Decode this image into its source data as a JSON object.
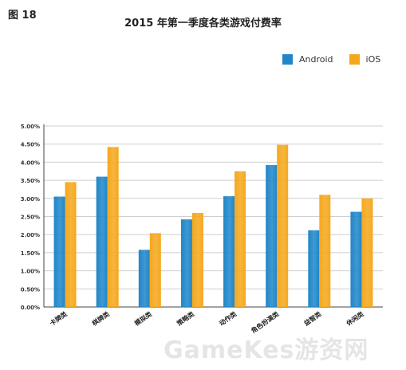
{
  "figure_label": "图 18",
  "watermark": "GameKes游资网",
  "colors": {
    "android": "#1f86c9",
    "ios": "#f5a81c",
    "grid": "#cfcfcf",
    "axis": "#444444"
  },
  "chart_data": {
    "type": "bar",
    "title": "2015 年第一季度各类游戏付费率",
    "xlabel": "",
    "ylabel": "",
    "ylim": [
      0,
      5
    ],
    "yticks": [
      "0.00%",
      "0.50%",
      "1.00%",
      "1.50%",
      "2.00%",
      "2.50%",
      "3.00%",
      "3.50%",
      "4.00%",
      "4.50%",
      "5.00%"
    ],
    "legend_position": "top-right",
    "grid": true,
    "categories": [
      "卡牌类",
      "棋牌类",
      "模拟类",
      "策略类",
      "动作类",
      "角色扮演类",
      "益智类",
      "休闲类"
    ],
    "series": [
      {
        "name": "Android",
        "values": [
          3.05,
          3.6,
          1.58,
          2.42,
          3.06,
          3.92,
          2.12,
          2.63
        ]
      },
      {
        "name": "iOS",
        "values": [
          3.45,
          4.42,
          2.04,
          2.6,
          3.75,
          4.48,
          3.1,
          3.0
        ]
      }
    ]
  }
}
